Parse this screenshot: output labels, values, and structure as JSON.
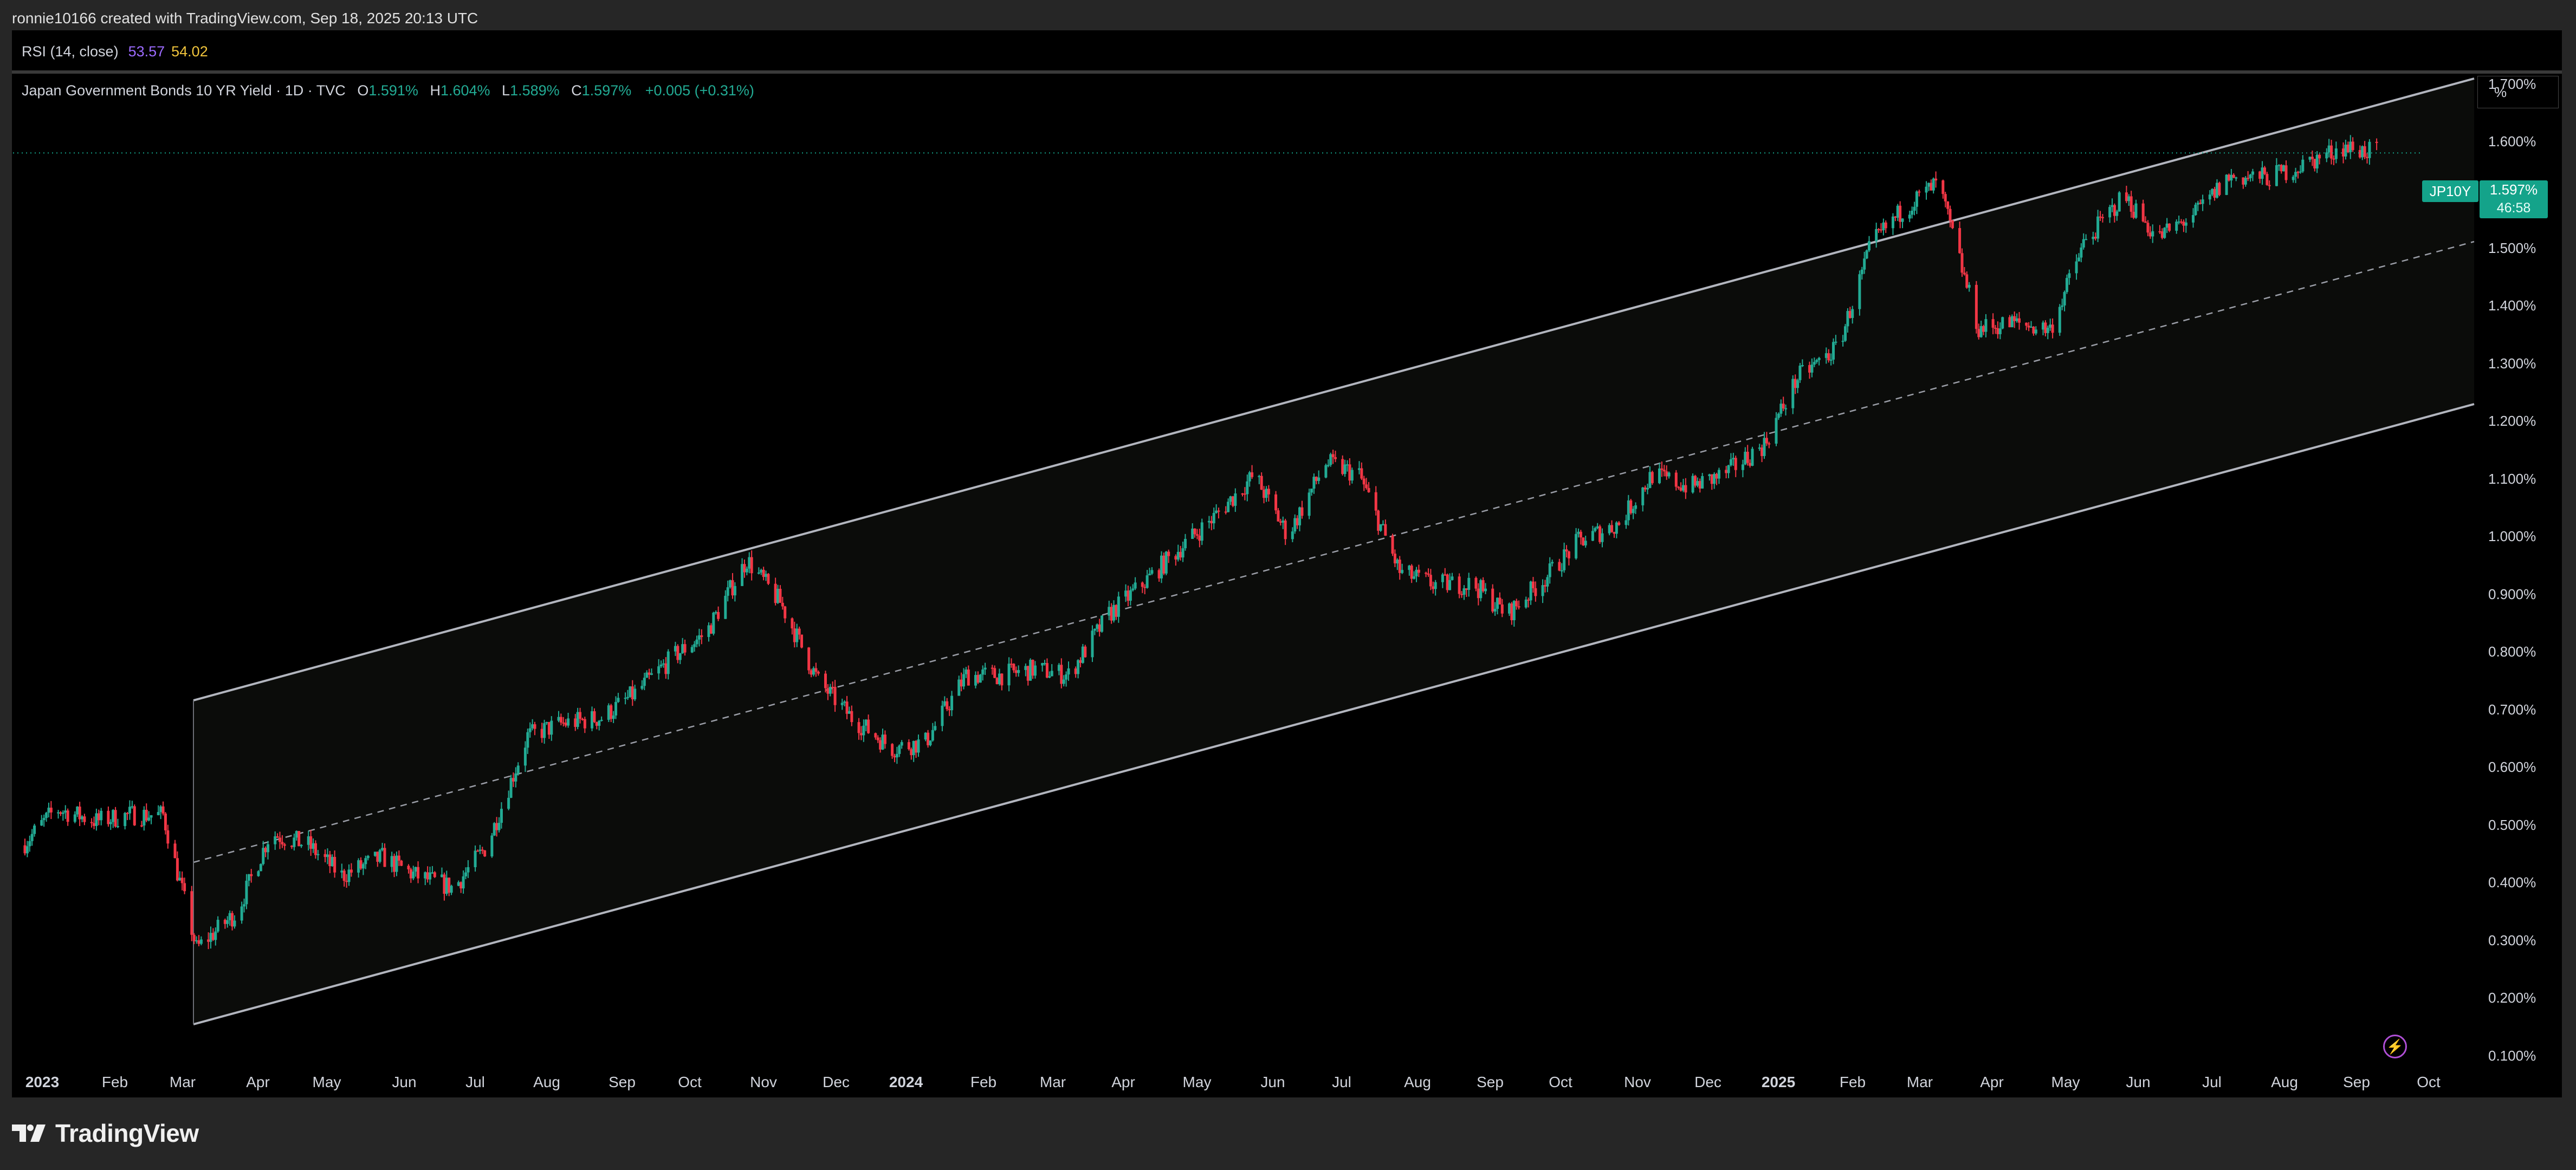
{
  "header": {
    "created_by": "ronnie10166 created with TradingView.com, Sep 18, 2025 20:13 UTC"
  },
  "rsi": {
    "label": "RSI (14, close)",
    "value1": "53.57",
    "value2": "54.02"
  },
  "legend": {
    "symbol": "Japan Government Bonds 10 YR Yield · 1D · TVC",
    "open_key": "O",
    "open": "1.591%",
    "high_key": "H",
    "high": "1.604%",
    "low_key": "L",
    "low": "1.589%",
    "close_key": "C",
    "close": "1.597%",
    "change": "+0.005 (+0.31%)"
  },
  "price_axis": {
    "unit": "%",
    "labels": [
      "1.700%",
      "1.600%",
      "1.500%",
      "1.400%",
      "1.300%",
      "1.200%",
      "1.100%",
      "1.000%",
      "0.900%",
      "0.800%",
      "0.700%",
      "0.600%",
      "0.500%",
      "0.400%",
      "0.300%",
      "0.200%",
      "0.100%"
    ]
  },
  "time_axis": {
    "labels": [
      "2023",
      "Feb",
      "Mar",
      "Apr",
      "May",
      "Jun",
      "Jul",
      "Aug",
      "Sep",
      "Oct",
      "Nov",
      "Dec",
      "2024",
      "Feb",
      "Mar",
      "Apr",
      "May",
      "Jun",
      "Jul",
      "Aug",
      "Sep",
      "Oct",
      "Nov",
      "Dec",
      "2025",
      "Feb",
      "Mar",
      "Apr",
      "May",
      "Jun",
      "Jul",
      "Aug",
      "Sep",
      "Oct"
    ],
    "year_labels": [
      "2023",
      "2024",
      "2025"
    ]
  },
  "current": {
    "symbol_tag": "JP10Y",
    "price": "1.597%",
    "countdown": "46:58"
  },
  "brand": {
    "name": "TradingView"
  },
  "colors": {
    "up": "#22ab94",
    "down": "#f23645",
    "channel": "#b2b5be",
    "background": "#000000",
    "tag": "#14a38a"
  },
  "chart_data": {
    "type": "candlestick",
    "title": "Japan Government Bonds 10 YR Yield · 1D · TVC",
    "ylabel": "%",
    "ylim": [
      0.08,
      1.77
    ],
    "xlim": [
      "2022-12-28",
      "2025-10-25"
    ],
    "grid": false,
    "series": [
      {
        "name": "JP10Y",
        "x": [
          "2023-01-01",
          "2023-01-15",
          "2023-02-01",
          "2023-02-15",
          "2023-03-01",
          "2023-03-15",
          "2023-04-01",
          "2023-04-15",
          "2023-05-01",
          "2023-05-15",
          "2023-06-01",
          "2023-06-15",
          "2023-07-01",
          "2023-07-15",
          "2023-08-01",
          "2023-08-15",
          "2023-09-01",
          "2023-09-15",
          "2023-10-01",
          "2023-10-15",
          "2023-11-01",
          "2023-11-15",
          "2023-12-01",
          "2023-12-15",
          "2024-01-01",
          "2024-01-15",
          "2024-02-01",
          "2024-02-15",
          "2024-03-01",
          "2024-03-15",
          "2024-04-01",
          "2024-04-15",
          "2024-05-01",
          "2024-05-15",
          "2024-06-01",
          "2024-06-15",
          "2024-07-01",
          "2024-07-15",
          "2024-08-01",
          "2024-08-15",
          "2024-09-01",
          "2024-09-15",
          "2024-10-01",
          "2024-10-15",
          "2024-11-01",
          "2024-11-15",
          "2024-12-01",
          "2024-12-15",
          "2025-01-01",
          "2025-01-15",
          "2025-02-01",
          "2025-02-15",
          "2025-03-01",
          "2025-03-15",
          "2025-04-01",
          "2025-04-15",
          "2025-05-01",
          "2025-05-15",
          "2025-06-01",
          "2025-06-15",
          "2025-07-01",
          "2025-07-15",
          "2025-08-01",
          "2025-08-15",
          "2025-09-01",
          "2025-09-15"
        ],
        "y": [
          0.45,
          0.51,
          0.49,
          0.5,
          0.5,
          0.28,
          0.34,
          0.47,
          0.45,
          0.4,
          0.43,
          0.4,
          0.38,
          0.45,
          0.63,
          0.65,
          0.66,
          0.7,
          0.76,
          0.8,
          0.92,
          0.85,
          0.72,
          0.66,
          0.61,
          0.62,
          0.73,
          0.73,
          0.74,
          0.73,
          0.83,
          0.88,
          0.94,
          0.99,
          1.06,
          0.96,
          1.08,
          1.06,
          0.9,
          0.88,
          0.88,
          0.83,
          0.89,
          0.95,
          0.98,
          1.06,
          1.04,
          1.06,
          1.11,
          1.22,
          1.27,
          1.44,
          1.5,
          1.54,
          1.3,
          1.31,
          1.3,
          1.44,
          1.52,
          1.45,
          1.49,
          1.55,
          1.55,
          1.57,
          1.6,
          1.59
        ]
      }
    ],
    "annotations": [
      "parallel upward channel",
      "dashed channel midline",
      "last price line"
    ]
  }
}
